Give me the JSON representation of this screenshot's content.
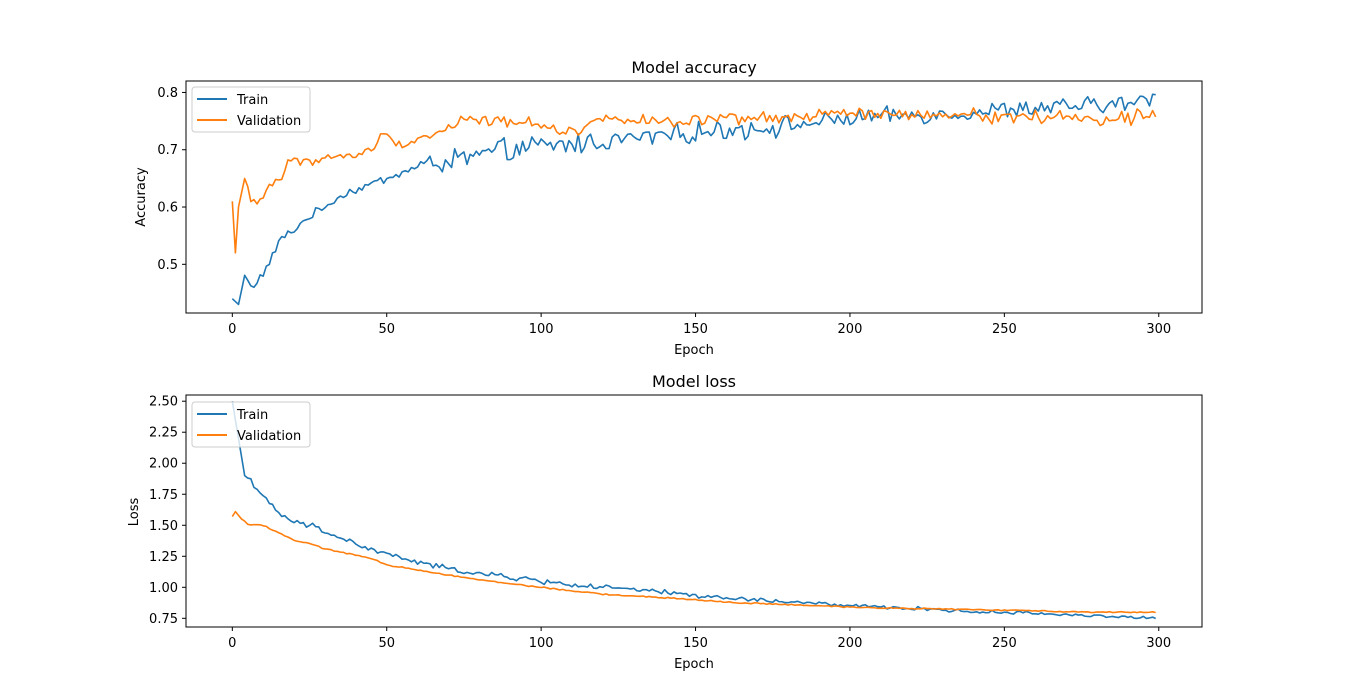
{
  "chart_data": [
    {
      "type": "line",
      "title": "Model accuracy",
      "xlabel": "Epoch",
      "ylabel": "Accuracy",
      "xlim": [
        -15,
        314
      ],
      "ylim": [
        0.415,
        0.82
      ],
      "xticks": [
        0,
        50,
        100,
        150,
        200,
        250,
        300
      ],
      "xtick_labels": [
        "0",
        "50",
        "100",
        "150",
        "200",
        "250",
        "300"
      ],
      "yticks": [
        0.5,
        0.6,
        0.7,
        0.8
      ],
      "ytick_labels": [
        "0.5",
        "0.6",
        "0.7",
        "0.8"
      ],
      "grid": false,
      "legend_position": "upper-left",
      "x_start": 0,
      "x_end": 299,
      "series": [
        {
          "name": "Train",
          "color": "#1f77b4",
          "anchors": [
            [
              0,
              0.44
            ],
            [
              2,
              0.43
            ],
            [
              4,
              0.48
            ],
            [
              6,
              0.46
            ],
            [
              8,
              0.47
            ],
            [
              12,
              0.5
            ],
            [
              15,
              0.54
            ],
            [
              20,
              0.56
            ],
            [
              24,
              0.58
            ],
            [
              30,
              0.6
            ],
            [
              35,
              0.62
            ],
            [
              40,
              0.63
            ],
            [
              45,
              0.64
            ],
            [
              50,
              0.65
            ],
            [
              60,
              0.67
            ],
            [
              70,
              0.68
            ],
            [
              80,
              0.69
            ],
            [
              90,
              0.7
            ],
            [
              100,
              0.705
            ],
            [
              110,
              0.71
            ],
            [
              120,
              0.715
            ],
            [
              130,
              0.72
            ],
            [
              140,
              0.725
            ],
            [
              150,
              0.73
            ],
            [
              160,
              0.735
            ],
            [
              170,
              0.738
            ],
            [
              180,
              0.742
            ],
            [
              190,
              0.748
            ],
            [
              200,
              0.755
            ],
            [
              210,
              0.758
            ],
            [
              220,
              0.76
            ],
            [
              230,
              0.762
            ],
            [
              240,
              0.765
            ],
            [
              250,
              0.77
            ],
            [
              260,
              0.772
            ],
            [
              270,
              0.775
            ],
            [
              280,
              0.778
            ],
            [
              290,
              0.78
            ],
            [
              299,
              0.79
            ]
          ],
          "noise": [
            0.006,
            0.016,
            0.014,
            0.012,
            0.012
          ]
        },
        {
          "name": "Validation",
          "color": "#ff7f0e",
          "anchors": [
            [
              0,
              0.61
            ],
            [
              1,
              0.52
            ],
            [
              2,
              0.6
            ],
            [
              4,
              0.65
            ],
            [
              6,
              0.61
            ],
            [
              10,
              0.615
            ],
            [
              12,
              0.64
            ],
            [
              16,
              0.65
            ],
            [
              18,
              0.68
            ],
            [
              25,
              0.68
            ],
            [
              30,
              0.685
            ],
            [
              40,
              0.69
            ],
            [
              45,
              0.7
            ],
            [
              48,
              0.725
            ],
            [
              55,
              0.71
            ],
            [
              60,
              0.72
            ],
            [
              65,
              0.725
            ],
            [
              70,
              0.74
            ],
            [
              75,
              0.755
            ],
            [
              80,
              0.75
            ],
            [
              90,
              0.75
            ],
            [
              100,
              0.745
            ],
            [
              110,
              0.73
            ],
            [
              120,
              0.755
            ],
            [
              130,
              0.755
            ],
            [
              140,
              0.745
            ],
            [
              150,
              0.75
            ],
            [
              160,
              0.752
            ],
            [
              170,
              0.755
            ],
            [
              180,
              0.755
            ],
            [
              190,
              0.76
            ],
            [
              200,
              0.765
            ],
            [
              210,
              0.76
            ],
            [
              220,
              0.762
            ],
            [
              230,
              0.755
            ],
            [
              240,
              0.765
            ],
            [
              250,
              0.755
            ],
            [
              260,
              0.76
            ],
            [
              270,
              0.755
            ],
            [
              280,
              0.755
            ],
            [
              290,
              0.755
            ],
            [
              297,
              0.77
            ],
            [
              299,
              0.758
            ]
          ],
          "noise": [
            0.006,
            0.008,
            0.008,
            0.008,
            0.01
          ]
        }
      ]
    },
    {
      "type": "line",
      "title": "Model loss",
      "xlabel": "Epoch",
      "ylabel": "Loss",
      "xlim": [
        -15,
        314
      ],
      "ylim": [
        0.68,
        2.55
      ],
      "xticks": [
        0,
        50,
        100,
        150,
        200,
        250,
        300
      ],
      "xtick_labels": [
        "0",
        "50",
        "100",
        "150",
        "200",
        "250",
        "300"
      ],
      "yticks": [
        0.75,
        1.0,
        1.25,
        1.5,
        1.75,
        2.0,
        2.25,
        2.5
      ],
      "ytick_labels": [
        "0.75",
        "1.00",
        "1.25",
        "1.50",
        "1.75",
        "2.00",
        "2.25",
        "2.50"
      ],
      "grid": false,
      "legend_position": "upper-left",
      "x_start": 0,
      "x_end": 299,
      "series": [
        {
          "name": "Train",
          "color": "#1f77b4",
          "anchors": [
            [
              0,
              2.5
            ],
            [
              2,
              2.2
            ],
            [
              4,
              1.9
            ],
            [
              6,
              1.87
            ],
            [
              10,
              1.72
            ],
            [
              15,
              1.6
            ],
            [
              20,
              1.52
            ],
            [
              25,
              1.5
            ],
            [
              30,
              1.45
            ],
            [
              35,
              1.4
            ],
            [
              40,
              1.35
            ],
            [
              45,
              1.3
            ],
            [
              50,
              1.27
            ],
            [
              60,
              1.2
            ],
            [
              70,
              1.15
            ],
            [
              80,
              1.11
            ],
            [
              90,
              1.08
            ],
            [
              100,
              1.05
            ],
            [
              110,
              1.02
            ],
            [
              120,
              1.0
            ],
            [
              130,
              0.98
            ],
            [
              140,
              0.96
            ],
            [
              150,
              0.935
            ],
            [
              160,
              0.91
            ],
            [
              170,
              0.9
            ],
            [
              180,
              0.88
            ],
            [
              190,
              0.87
            ],
            [
              200,
              0.85
            ],
            [
              210,
              0.84
            ],
            [
              220,
              0.83
            ],
            [
              230,
              0.82
            ],
            [
              240,
              0.8
            ],
            [
              250,
              0.8
            ],
            [
              260,
              0.79
            ],
            [
              270,
              0.78
            ],
            [
              280,
              0.77
            ],
            [
              290,
              0.76
            ],
            [
              299,
              0.75
            ]
          ],
          "noise": [
            0.02,
            0.018,
            0.015,
            0.012,
            0.01
          ]
        },
        {
          "name": "Validation",
          "color": "#ff7f0e",
          "anchors": [
            [
              0,
              1.57
            ],
            [
              1,
              1.61
            ],
            [
              2,
              1.58
            ],
            [
              3,
              1.55
            ],
            [
              5,
              1.51
            ],
            [
              10,
              1.5
            ],
            [
              15,
              1.44
            ],
            [
              20,
              1.38
            ],
            [
              25,
              1.35
            ],
            [
              30,
              1.31
            ],
            [
              40,
              1.26
            ],
            [
              45,
              1.23
            ],
            [
              50,
              1.18
            ],
            [
              60,
              1.14
            ],
            [
              70,
              1.1
            ],
            [
              80,
              1.06
            ],
            [
              90,
              1.03
            ],
            [
              100,
              1.0
            ],
            [
              110,
              0.97
            ],
            [
              120,
              0.945
            ],
            [
              130,
              0.93
            ],
            [
              140,
              0.915
            ],
            [
              150,
              0.9
            ],
            [
              160,
              0.88
            ],
            [
              170,
              0.87
            ],
            [
              180,
              0.86
            ],
            [
              190,
              0.85
            ],
            [
              200,
              0.84
            ],
            [
              210,
              0.835
            ],
            [
              220,
              0.83
            ],
            [
              230,
              0.825
            ],
            [
              240,
              0.82
            ],
            [
              250,
              0.815
            ],
            [
              260,
              0.81
            ],
            [
              270,
              0.805
            ],
            [
              280,
              0.8
            ],
            [
              290,
              0.8
            ],
            [
              299,
              0.8
            ]
          ],
          "noise": [
            0.004,
            0.004,
            0.004,
            0.004,
            0.004
          ]
        }
      ]
    }
  ]
}
